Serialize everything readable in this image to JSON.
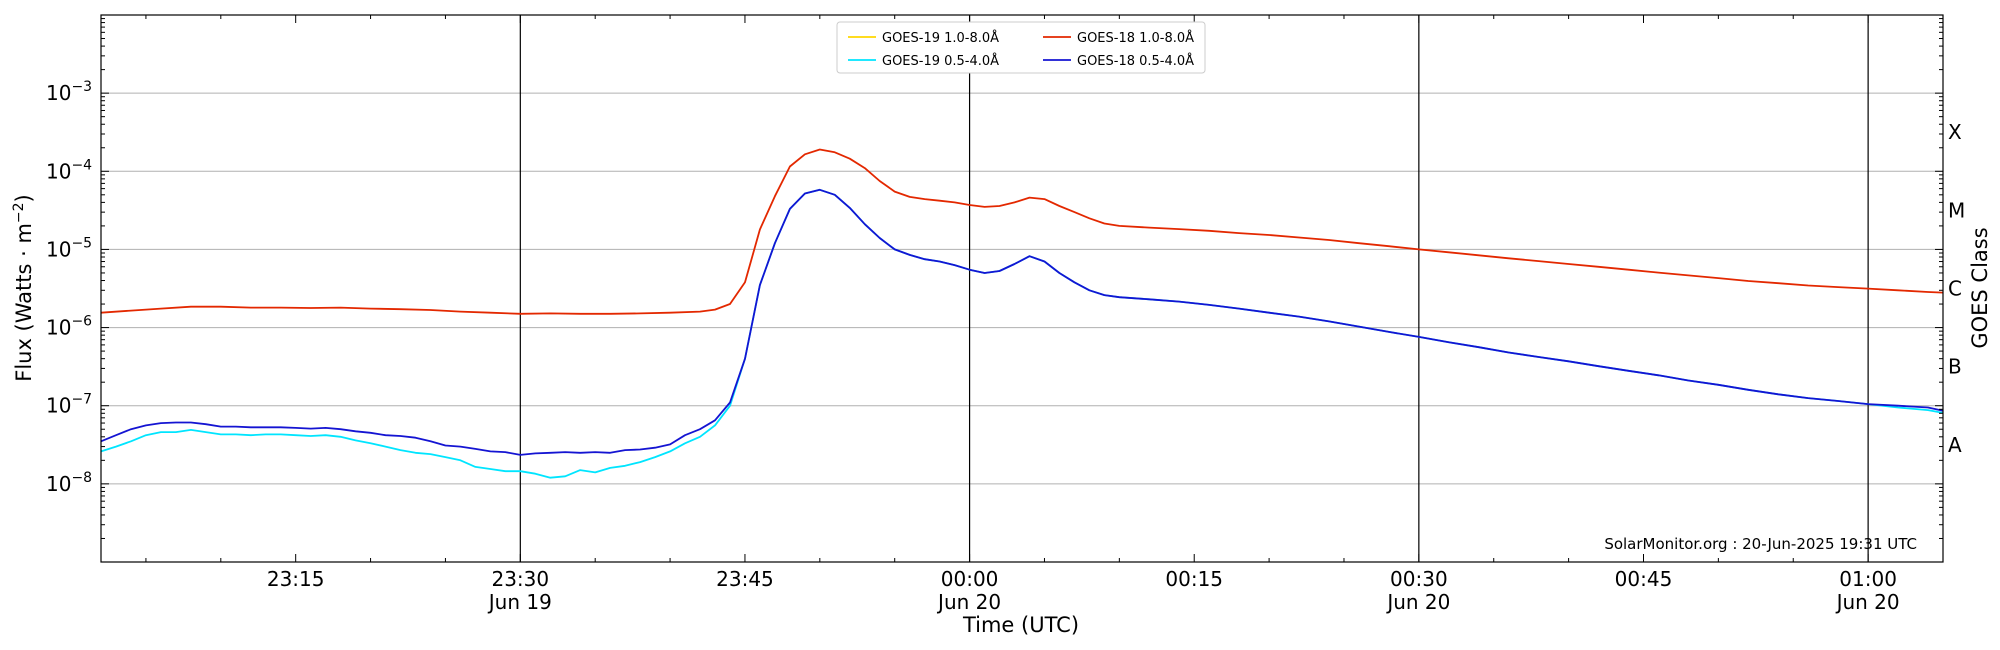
{
  "chart_data": {
    "type": "line",
    "title": "",
    "xlabel": "Time (UTC)",
    "ylabel": "Flux (Watts · m",
    "ylabel_superscript": "−2",
    "ylabel_close": ")",
    "y2label": "GOES Class",
    "yscale": "log",
    "ylim": [
      1e-09,
      0.01
    ],
    "xlim": [
      "2025-06-19 23:02",
      "2025-06-20 01:05"
    ],
    "grid": "horizontal",
    "legend_position": "top-center",
    "credit": "SolarMonitor.org : 20-Jun-2025 19:31 UTC",
    "y_ticks": [
      {
        "exp": -8,
        "base": "10",
        "sup": "−8"
      },
      {
        "exp": -7,
        "base": "10",
        "sup": "−7"
      },
      {
        "exp": -6,
        "base": "10",
        "sup": "−6"
      },
      {
        "exp": -5,
        "base": "10",
        "sup": "−5"
      },
      {
        "exp": -4,
        "base": "10",
        "sup": "−4"
      },
      {
        "exp": -3,
        "base": "10",
        "sup": "−3"
      }
    ],
    "x_ticks": [
      {
        "minute": 13,
        "time": "23:15",
        "date": ""
      },
      {
        "minute": 28,
        "time": "23:30",
        "date": "Jun 19"
      },
      {
        "minute": 43,
        "time": "23:45",
        "date": ""
      },
      {
        "minute": 58,
        "time": "00:00",
        "date": "Jun 20"
      },
      {
        "minute": 73,
        "time": "00:15",
        "date": ""
      },
      {
        "minute": 88,
        "time": "00:30",
        "date": "Jun 20"
      },
      {
        "minute": 103,
        "time": "00:45",
        "date": ""
      },
      {
        "minute": 118,
        "time": "01:00",
        "date": "Jun 20"
      }
    ],
    "vertical_lines": [
      28,
      58,
      88,
      118
    ],
    "class_labels": [
      {
        "label": "A",
        "exp": -7.5
      },
      {
        "label": "B",
        "exp": -6.5
      },
      {
        "label": "C",
        "exp": -5.5
      },
      {
        "label": "M",
        "exp": -4.5
      },
      {
        "label": "X",
        "exp": -3.5
      }
    ],
    "series": [
      {
        "name": "GOES-19 1.0-8.0Å",
        "color": "#ffd700",
        "points": []
      },
      {
        "name": "GOES-19 0.5-4.0Å",
        "color": "#00e5ff",
        "points": [
          [
            0,
            2.6e-08
          ],
          [
            1,
            3e-08
          ],
          [
            2,
            3.5e-08
          ],
          [
            3,
            4.2e-08
          ],
          [
            4,
            4.6e-08
          ],
          [
            5,
            4.6e-08
          ],
          [
            6,
            4.9e-08
          ],
          [
            7,
            4.6e-08
          ],
          [
            8,
            4.3e-08
          ],
          [
            9,
            4.3e-08
          ],
          [
            10,
            4.2e-08
          ],
          [
            11,
            4.3e-08
          ],
          [
            12,
            4.3e-08
          ],
          [
            13,
            4.2e-08
          ],
          [
            14,
            4.1e-08
          ],
          [
            15,
            4.2e-08
          ],
          [
            16,
            4e-08
          ],
          [
            17,
            3.6e-08
          ],
          [
            18,
            3.3e-08
          ],
          [
            19,
            3e-08
          ],
          [
            20,
            2.7e-08
          ],
          [
            21,
            2.5e-08
          ],
          [
            22,
            2.4e-08
          ],
          [
            23,
            2.2e-08
          ],
          [
            24,
            2e-08
          ],
          [
            25,
            1.65e-08
          ],
          [
            26,
            1.55e-08
          ],
          [
            27,
            1.45e-08
          ],
          [
            28,
            1.45e-08
          ],
          [
            29,
            1.35e-08
          ],
          [
            30,
            1.2e-08
          ],
          [
            31,
            1.25e-08
          ],
          [
            32,
            1.5e-08
          ],
          [
            33,
            1.4e-08
          ],
          [
            34,
            1.6e-08
          ],
          [
            35,
            1.7e-08
          ],
          [
            36,
            1.9e-08
          ],
          [
            37,
            2.2e-08
          ],
          [
            38,
            2.6e-08
          ],
          [
            39,
            3.3e-08
          ],
          [
            40,
            4e-08
          ],
          [
            41,
            5.6e-08
          ],
          [
            42,
            1e-07
          ],
          [
            43,
            4e-07
          ],
          [
            44,
            3.5e-06
          ],
          [
            45,
            1.2e-05
          ],
          [
            46,
            3.3e-05
          ],
          [
            47,
            5.2e-05
          ],
          [
            48,
            5.8e-05
          ],
          [
            49,
            5e-05
          ],
          [
            50,
            3.4e-05
          ],
          [
            51,
            2.1e-05
          ],
          [
            52,
            1.4e-05
          ],
          [
            53,
            1e-05
          ],
          [
            54,
            8.5e-06
          ],
          [
            55,
            7.5e-06
          ],
          [
            56,
            7e-06
          ],
          [
            57,
            6.3e-06
          ],
          [
            58,
            5.5e-06
          ],
          [
            59,
            5e-06
          ],
          [
            60,
            5.3e-06
          ],
          [
            61,
            6.5e-06
          ],
          [
            62,
            8.2e-06
          ],
          [
            63,
            7e-06
          ],
          [
            64,
            5e-06
          ],
          [
            65,
            3.8e-06
          ],
          [
            66,
            3e-06
          ],
          [
            67,
            2.6e-06
          ],
          [
            68,
            2.45e-06
          ],
          [
            70,
            2.3e-06
          ],
          [
            72,
            2.15e-06
          ],
          [
            74,
            1.95e-06
          ],
          [
            76,
            1.75e-06
          ],
          [
            78,
            1.55e-06
          ],
          [
            80,
            1.38e-06
          ],
          [
            82,
            1.2e-06
          ],
          [
            84,
            1.03e-06
          ],
          [
            86,
            8.8e-07
          ],
          [
            88,
            7.6e-07
          ],
          [
            90,
            6.5e-07
          ],
          [
            92,
            5.6e-07
          ],
          [
            94,
            4.8e-07
          ],
          [
            96,
            4.2e-07
          ],
          [
            98,
            3.7e-07
          ],
          [
            100,
            3.2e-07
          ],
          [
            102,
            2.8e-07
          ],
          [
            104,
            2.45e-07
          ],
          [
            106,
            2.1e-07
          ],
          [
            108,
            1.85e-07
          ],
          [
            110,
            1.6e-07
          ],
          [
            112,
            1.4e-07
          ],
          [
            114,
            1.25e-07
          ],
          [
            116,
            1.15e-07
          ],
          [
            118,
            1.05e-07
          ],
          [
            120,
            9.5e-08
          ],
          [
            122,
            8.8e-08
          ],
          [
            123,
            8.1e-08
          ]
        ]
      },
      {
        "name": "GOES-18 1.0-8.0Å",
        "color": "#e32800",
        "points": [
          [
            0,
            1.55e-06
          ],
          [
            2,
            1.65e-06
          ],
          [
            4,
            1.75e-06
          ],
          [
            6,
            1.85e-06
          ],
          [
            8,
            1.85e-06
          ],
          [
            10,
            1.8e-06
          ],
          [
            12,
            1.8e-06
          ],
          [
            14,
            1.78e-06
          ],
          [
            16,
            1.8e-06
          ],
          [
            18,
            1.75e-06
          ],
          [
            20,
            1.72e-06
          ],
          [
            22,
            1.68e-06
          ],
          [
            24,
            1.6e-06
          ],
          [
            26,
            1.55e-06
          ],
          [
            28,
            1.5e-06
          ],
          [
            30,
            1.52e-06
          ],
          [
            32,
            1.5e-06
          ],
          [
            34,
            1.5e-06
          ],
          [
            36,
            1.52e-06
          ],
          [
            38,
            1.55e-06
          ],
          [
            40,
            1.6e-06
          ],
          [
            41,
            1.7e-06
          ],
          [
            42,
            2e-06
          ],
          [
            43,
            3.8e-06
          ],
          [
            44,
            1.8e-05
          ],
          [
            45,
            4.8e-05
          ],
          [
            46,
            0.000115
          ],
          [
            47,
            0.000165
          ],
          [
            48,
            0.00019
          ],
          [
            49,
            0.000175
          ],
          [
            50,
            0.000145
          ],
          [
            51,
            0.00011
          ],
          [
            52,
            7.5e-05
          ],
          [
            53,
            5.5e-05
          ],
          [
            54,
            4.7e-05
          ],
          [
            55,
            4.4e-05
          ],
          [
            56,
            4.2e-05
          ],
          [
            57,
            4e-05
          ],
          [
            58,
            3.7e-05
          ],
          [
            59,
            3.5e-05
          ],
          [
            60,
            3.6e-05
          ],
          [
            61,
            4e-05
          ],
          [
            62,
            4.6e-05
          ],
          [
            63,
            4.4e-05
          ],
          [
            64,
            3.6e-05
          ],
          [
            65,
            3e-05
          ],
          [
            66,
            2.5e-05
          ],
          [
            67,
            2.15e-05
          ],
          [
            68,
            2e-05
          ],
          [
            70,
            1.9e-05
          ],
          [
            72,
            1.82e-05
          ],
          [
            74,
            1.73e-05
          ],
          [
            76,
            1.62e-05
          ],
          [
            78,
            1.53e-05
          ],
          [
            80,
            1.42e-05
          ],
          [
            82,
            1.32e-05
          ],
          [
            84,
            1.2e-05
          ],
          [
            86,
            1.1e-05
          ],
          [
            88,
            1e-05
          ],
          [
            90,
            9.2e-06
          ],
          [
            92,
            8.4e-06
          ],
          [
            94,
            7.7e-06
          ],
          [
            96,
            7.1e-06
          ],
          [
            98,
            6.5e-06
          ],
          [
            100,
            6e-06
          ],
          [
            102,
            5.5e-06
          ],
          [
            104,
            5.05e-06
          ],
          [
            106,
            4.65e-06
          ],
          [
            108,
            4.3e-06
          ],
          [
            110,
            3.95e-06
          ],
          [
            112,
            3.7e-06
          ],
          [
            114,
            3.45e-06
          ],
          [
            116,
            3.3e-06
          ],
          [
            118,
            3.15e-06
          ],
          [
            120,
            3e-06
          ],
          [
            122,
            2.85e-06
          ],
          [
            123,
            2.8e-06
          ]
        ]
      },
      {
        "name": "GOES-18 0.5-4.0Å",
        "color": "#1414d2",
        "points": [
          [
            0,
            3.5e-08
          ],
          [
            1,
            4.2e-08
          ],
          [
            2,
            5e-08
          ],
          [
            3,
            5.6e-08
          ],
          [
            4,
            6e-08
          ],
          [
            5,
            6.1e-08
          ],
          [
            6,
            6.1e-08
          ],
          [
            7,
            5.8e-08
          ],
          [
            8,
            5.4e-08
          ],
          [
            9,
            5.4e-08
          ],
          [
            10,
            5.3e-08
          ],
          [
            11,
            5.3e-08
          ],
          [
            12,
            5.3e-08
          ],
          [
            13,
            5.2e-08
          ],
          [
            14,
            5.1e-08
          ],
          [
            15,
            5.2e-08
          ],
          [
            16,
            5e-08
          ],
          [
            17,
            4.7e-08
          ],
          [
            18,
            4.5e-08
          ],
          [
            19,
            4.2e-08
          ],
          [
            20,
            4.1e-08
          ],
          [
            21,
            3.9e-08
          ],
          [
            22,
            3.5e-08
          ],
          [
            23,
            3.1e-08
          ],
          [
            24,
            3e-08
          ],
          [
            25,
            2.8e-08
          ],
          [
            26,
            2.6e-08
          ],
          [
            27,
            2.55e-08
          ],
          [
            28,
            2.35e-08
          ],
          [
            29,
            2.45e-08
          ],
          [
            30,
            2.5e-08
          ],
          [
            31,
            2.55e-08
          ],
          [
            32,
            2.5e-08
          ],
          [
            33,
            2.55e-08
          ],
          [
            34,
            2.5e-08
          ],
          [
            35,
            2.7e-08
          ],
          [
            36,
            2.75e-08
          ],
          [
            37,
            2.9e-08
          ],
          [
            38,
            3.2e-08
          ],
          [
            39,
            4.2e-08
          ],
          [
            40,
            5e-08
          ],
          [
            41,
            6.5e-08
          ],
          [
            42,
            1.1e-07
          ],
          [
            43,
            4e-07
          ],
          [
            44,
            3.5e-06
          ],
          [
            45,
            1.2e-05
          ],
          [
            46,
            3.3e-05
          ],
          [
            47,
            5.2e-05
          ],
          [
            48,
            5.8e-05
          ],
          [
            49,
            5e-05
          ],
          [
            50,
            3.4e-05
          ],
          [
            51,
            2.1e-05
          ],
          [
            52,
            1.4e-05
          ],
          [
            53,
            1e-05
          ],
          [
            54,
            8.5e-06
          ],
          [
            55,
            7.5e-06
          ],
          [
            56,
            7e-06
          ],
          [
            57,
            6.3e-06
          ],
          [
            58,
            5.5e-06
          ],
          [
            59,
            5e-06
          ],
          [
            60,
            5.3e-06
          ],
          [
            61,
            6.5e-06
          ],
          [
            62,
            8.2e-06
          ],
          [
            63,
            7e-06
          ],
          [
            64,
            5e-06
          ],
          [
            65,
            3.8e-06
          ],
          [
            66,
            3e-06
          ],
          [
            67,
            2.6e-06
          ],
          [
            68,
            2.45e-06
          ],
          [
            70,
            2.3e-06
          ],
          [
            72,
            2.15e-06
          ],
          [
            74,
            1.95e-06
          ],
          [
            76,
            1.75e-06
          ],
          [
            78,
            1.55e-06
          ],
          [
            80,
            1.38e-06
          ],
          [
            82,
            1.2e-06
          ],
          [
            84,
            1.03e-06
          ],
          [
            86,
            8.8e-07
          ],
          [
            88,
            7.6e-07
          ],
          [
            90,
            6.5e-07
          ],
          [
            92,
            5.6e-07
          ],
          [
            94,
            4.8e-07
          ],
          [
            96,
            4.2e-07
          ],
          [
            98,
            3.7e-07
          ],
          [
            100,
            3.2e-07
          ],
          [
            102,
            2.8e-07
          ],
          [
            104,
            2.45e-07
          ],
          [
            106,
            2.1e-07
          ],
          [
            108,
            1.85e-07
          ],
          [
            110,
            1.6e-07
          ],
          [
            112,
            1.4e-07
          ],
          [
            114,
            1.25e-07
          ],
          [
            116,
            1.15e-07
          ],
          [
            118,
            1.05e-07
          ],
          [
            120,
            1e-07
          ],
          [
            122,
            9.5e-08
          ],
          [
            123,
            8.6e-08
          ]
        ]
      }
    ]
  }
}
